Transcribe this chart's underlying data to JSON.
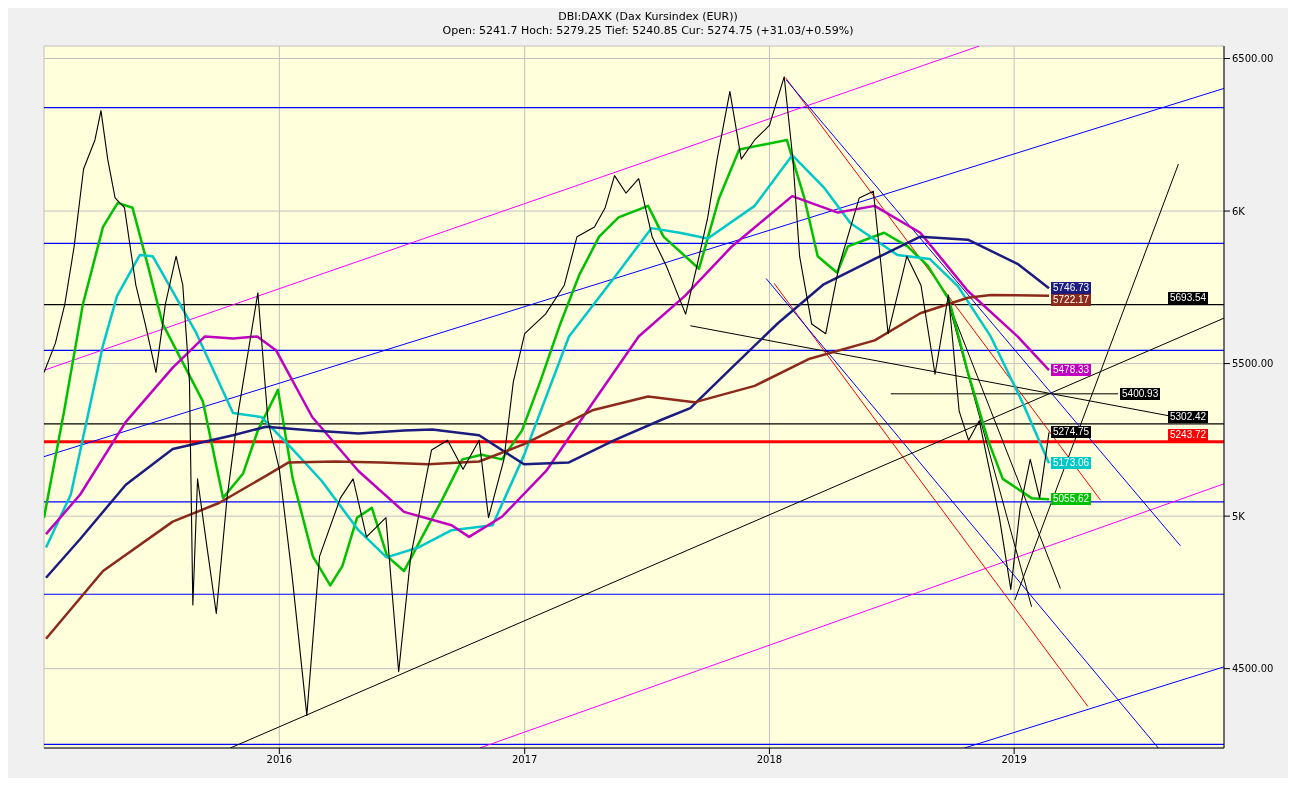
{
  "chart_data": {
    "type": "line",
    "title": "DBI:DAXK (Dax Kursindex (EUR))",
    "subtitle": "Open: 5241.7 Hoch: 5279.25 Tief: 5240.85 Cur: 5274.75 (+31.03/+0.59%)",
    "xlim": [
      "2015-01-15",
      "2019-11-10"
    ],
    "xticks": [
      {
        "value": "2016-01-01",
        "label": "2016"
      },
      {
        "value": "2017-01-01",
        "label": "2017"
      },
      {
        "value": "2018-01-01",
        "label": "2018"
      },
      {
        "value": "2019-01-01",
        "label": "2019"
      }
    ],
    "ylim": [
      4240,
      6541
    ],
    "yticks": [
      {
        "value": 4500,
        "label": "4500.00"
      },
      {
        "value": 5000,
        "label": "5K"
      },
      {
        "value": 5500,
        "label": "5500.00"
      },
      {
        "value": 6000,
        "label": "6K"
      },
      {
        "value": 6500,
        "label": "6500.00"
      }
    ],
    "grid": true,
    "ref_lines": [
      {
        "axis": "y",
        "value": 6339,
        "color": "#0000ff"
      },
      {
        "axis": "y",
        "value": 5894,
        "color": "#0000ff"
      },
      {
        "axis": "y",
        "value": 5543,
        "color": "#0000ff"
      },
      {
        "axis": "y",
        "value": 5047,
        "color": "#0000ff"
      },
      {
        "axis": "y",
        "value": 4744,
        "color": "#0000ff"
      },
      {
        "axis": "y",
        "value": 4252,
        "color": "#0000ff"
      },
      {
        "axis": "y",
        "value": 5693.54,
        "label": "5693.54",
        "color": "#000000"
      },
      {
        "axis": "y",
        "value": 5302.42,
        "label": "5302.42",
        "color": "#000000"
      },
      {
        "axis": "y",
        "value": 5243.72,
        "label": "5243.72",
        "color": "#ff0000"
      }
    ],
    "series": [
      {
        "type": "line",
        "color": "#ff00ff",
        "x": [
          "2015-01-15",
          "2018-11-10"
        ],
        "values": [
          5478,
          6541
        ]
      },
      {
        "type": "line",
        "color": "#ff00ff",
        "x": [
          "2016-10-26",
          "2019-11-10"
        ],
        "values": [
          4240,
          5106
        ]
      },
      {
        "type": "line",
        "color": "#0000ff",
        "x": [
          "2015-01-15",
          "2019-11-10"
        ],
        "values": [
          5195,
          6402
        ]
      },
      {
        "type": "line",
        "color": "#0000ff",
        "x": [
          "2018-10-19",
          "2019-11-10"
        ],
        "values": [
          4240,
          4506
        ]
      },
      {
        "type": "line",
        "color": "#000000",
        "x": [
          "2015-10-20",
          "2019-11-10"
        ],
        "values": [
          4240,
          5649
        ]
      },
      {
        "type": "line",
        "color": "#000000",
        "x": [
          "2017-09-05",
          "2019-10-07"
        ],
        "values": [
          5624,
          5309
        ]
      },
      {
        "type": "line",
        "color": "#000000",
        "x": [
          "2018-07-01",
          "2019-06-05"
        ],
        "values": [
          5400.93,
          5400.93
        ],
        "value_labels": [
          null,
          "5400.93"
        ]
      },
      {
        "type": "line",
        "color": "#ff0000",
        "x": [
          "2018-01-25",
          "2019-05-10"
        ],
        "values": [
          6437,
          5052
        ]
      },
      {
        "type": "line",
        "color": "#ff0000",
        "x": [
          "2018-01-08",
          "2019-04-21"
        ],
        "values": [
          5763,
          4376
        ]
      },
      {
        "type": "line",
        "color": "#0000ff",
        "x": [
          "2018-01-26",
          "2019-09-06"
        ],
        "values": [
          6430,
          4903
        ]
      },
      {
        "type": "line",
        "color": "#0000ff",
        "x": [
          "2017-12-27",
          "2019-08-04"
        ],
        "values": [
          5779,
          4240
        ]
      },
      {
        "type": "line",
        "color": "#000000",
        "x": [
          "2018-09-24",
          "2019-03-11"
        ],
        "values": [
          5706,
          4763
        ]
      },
      {
        "type": "line",
        "color": "#000000",
        "x": [
          "2018-09-24",
          "2019-01-27"
        ],
        "values": [
          5706,
          4703
        ]
      },
      {
        "type": "line",
        "color": "#000000",
        "x": [
          "2019-01-02",
          "2019-09-03"
        ],
        "values": [
          4725,
          6154
        ]
      },
      {
        "type": "line",
        "color": "#000000",
        "x": [
          "2015-01-15",
          "2015-02-01",
          "2015-02-15",
          "2015-03-01",
          "2015-03-15",
          "2015-04-01",
          "2015-04-10",
          "2015-04-20",
          "2015-05-01",
          "2015-05-15",
          "2015-06-01",
          "2015-06-15",
          "2015-07-01",
          "2015-07-15",
          "2015-07-31",
          "2015-08-10",
          "2015-08-20",
          "2015-08-25",
          "2015-09-01",
          "2015-09-15",
          "2015-09-29",
          "2015-10-15",
          "2015-11-01",
          "2015-11-30",
          "2015-12-15",
          "2016-01-01",
          "2016-01-20",
          "2016-02-11",
          "2016-03-01",
          "2016-04-01",
          "2016-04-20",
          "2016-05-10",
          "2016-06-08",
          "2016-06-27",
          "2016-07-15",
          "2016-08-15",
          "2016-09-08",
          "2016-10-01",
          "2016-10-25",
          "2016-11-08",
          "2016-12-01",
          "2016-12-15",
          "2017-01-01",
          "2017-02-01",
          "2017-03-01",
          "2017-03-20",
          "2017-04-15",
          "2017-05-01",
          "2017-05-15",
          "2017-06-01",
          "2017-06-20",
          "2017-07-10",
          "2017-07-31",
          "2017-08-29",
          "2017-09-15",
          "2017-10-01",
          "2017-10-15",
          "2017-11-03",
          "2017-11-20",
          "2017-12-10",
          "2018-01-01",
          "2018-01-23",
          "2018-02-05",
          "2018-02-15",
          "2018-03-05",
          "2018-03-26",
          "2018-04-15",
          "2018-05-15",
          "2018-06-05",
          "2018-06-27",
          "2018-07-25",
          "2018-08-15",
          "2018-09-05",
          "2018-09-25",
          "2018-10-11",
          "2018-10-25",
          "2018-11-10",
          "2018-11-25",
          "2018-12-10",
          "2018-12-27",
          "2019-01-10",
          "2019-01-25",
          "2019-02-08",
          "2019-02-22"
        ],
        "values": [
          5471,
          5567,
          5694,
          5884,
          6138,
          6233,
          6329,
          6170,
          6043,
          6011,
          5757,
          5630,
          5471,
          5694,
          5852,
          5757,
          5440,
          4709,
          5122,
          4900,
          4681,
          5059,
          5344,
          5732,
          5313,
          5154,
          4805,
          4347,
          4868,
          5059,
          5122,
          4932,
          4995,
          4490,
          4868,
          5217,
          5249,
          5154,
          5249,
          4995,
          5186,
          5440,
          5598,
          5662,
          5757,
          5916,
          5948,
          6011,
          6116,
          6059,
          6106,
          5916,
          5821,
          5662,
          5821,
          5979,
          6170,
          6392,
          6170,
          6233,
          6281,
          6440,
          6170,
          5852,
          5630,
          5598,
          5821,
          6043,
          6065,
          5598,
          5852,
          5757,
          5465,
          5725,
          5344,
          5249,
          5313,
          5154,
          4995,
          4760,
          5027,
          5186,
          5059,
          5274.75
        ],
        "value_labels": [
          null,
          null,
          null,
          null,
          null,
          null,
          null,
          null,
          null,
          null,
          null,
          null,
          null,
          null,
          null,
          null,
          null,
          null,
          null,
          null,
          null,
          null,
          null,
          null,
          null,
          null,
          null,
          null,
          null,
          null,
          null,
          null,
          null,
          null,
          null,
          null,
          null,
          null,
          null,
          null,
          null,
          null,
          null,
          null,
          null,
          null,
          null,
          null,
          null,
          null,
          null,
          null,
          null,
          null,
          null,
          null,
          null,
          null,
          null,
          null,
          null,
          null,
          null,
          null,
          null,
          null,
          null,
          null,
          null,
          null,
          null,
          null,
          null,
          null,
          null,
          null,
          null,
          null,
          null,
          null,
          null,
          null,
          null,
          "5274.75"
        ]
      },
      {
        "type": "line",
        "color": "#00c000",
        "x": [
          "2015-01-15",
          "2015-02-14",
          "2015-03-14",
          "2015-04-13",
          "2015-05-05",
          "2015-05-27",
          "2015-06-19",
          "2015-07-11",
          "2015-08-10",
          "2015-09-09",
          "2015-10-09",
          "2015-11-08",
          "2015-11-30",
          "2015-12-30",
          "2016-01-21",
          "2016-02-20",
          "2016-03-17",
          "2016-04-04",
          "2016-04-26",
          "2016-05-18",
          "2016-06-10",
          "2016-07-05",
          "2016-08-01",
          "2016-09-01",
          "2016-09-30",
          "2016-10-29",
          "2016-11-28",
          "2016-12-28",
          "2017-01-24",
          "2017-02-23",
          "2017-03-23",
          "2017-04-22",
          "2017-05-21",
          "2017-07-04",
          "2017-07-27",
          "2017-09-18",
          "2017-10-18",
          "2017-11-17",
          "2018-01-27",
          "2018-02-22",
          "2018-03-14",
          "2018-04-12",
          "2018-04-28",
          "2018-06-21",
          "2018-07-26",
          "2018-08-25",
          "2018-09-26",
          "2018-10-24",
          "2018-11-23",
          "2018-12-15",
          "2019-01-27",
          "2019-02-22"
        ],
        "values": [
          4995,
          5344,
          5694,
          5948,
          6027,
          6011,
          5821,
          5630,
          5503,
          5376,
          5060,
          5140,
          5281,
          5414,
          5122,
          4868,
          4773,
          4836,
          4995,
          5027,
          4868,
          4820,
          4932,
          5059,
          5186,
          5201,
          5186,
          5281,
          5440,
          5630,
          5789,
          5916,
          5979,
          6017,
          5916,
          5811,
          6043,
          6202,
          6233,
          6043,
          5852,
          5798,
          5884,
          5929,
          5884,
          5821,
          5709,
          5471,
          5249,
          5122,
          5059,
          5055.62
        ],
        "value_labels": [
          null,
          null,
          null,
          null,
          null,
          null,
          null,
          null,
          null,
          null,
          null,
          null,
          null,
          null,
          null,
          null,
          null,
          null,
          null,
          null,
          null,
          null,
          null,
          null,
          null,
          null,
          null,
          null,
          null,
          null,
          null,
          null,
          null,
          null,
          null,
          null,
          null,
          null,
          null,
          null,
          null,
          null,
          null,
          null,
          null,
          null,
          null,
          null,
          null,
          null,
          null,
          "5055.62"
        ]
      },
      {
        "type": "line",
        "color": "#00c8c8",
        "x": [
          "2015-01-18",
          "2015-02-24",
          "2015-04-13",
          "2015-05-04",
          "2015-06-07",
          "2015-06-26",
          "2015-08-29",
          "2015-10-24",
          "2015-12-05",
          "2016-01-23",
          "2016-03-04",
          "2016-04-28",
          "2016-06-09",
          "2016-07-26",
          "2016-09-14",
          "2016-11-14",
          "2016-12-31",
          "2017-03-08",
          "2017-05-15",
          "2017-07-09",
          "2017-08-20",
          "2017-10-01",
          "2017-12-10",
          "2018-02-04",
          "2018-03-23",
          "2018-05-02",
          "2018-07-11",
          "2018-08-28",
          "2018-10-09",
          "2018-11-27",
          "2019-01-14",
          "2019-02-22"
        ],
        "values": [
          4897,
          5071,
          5560,
          5722,
          5856,
          5852,
          5605,
          5338,
          5325,
          5214,
          5116,
          4954,
          4865,
          4897,
          4954,
          4970,
          5200,
          5589,
          5783,
          5944,
          5929,
          5910,
          6017,
          6183,
          6078,
          5960,
          5856,
          5843,
          5754,
          5589,
          5370,
          5173.06
        ],
        "value_labels": [
          null,
          null,
          null,
          null,
          null,
          null,
          null,
          null,
          null,
          null,
          null,
          null,
          null,
          null,
          null,
          null,
          null,
          null,
          null,
          null,
          null,
          null,
          null,
          null,
          null,
          null,
          null,
          null,
          null,
          null,
          null,
          "5173.06"
        ]
      },
      {
        "type": "line",
        "color": "#c000c0",
        "x": [
          "2015-01-18",
          "2015-03-10",
          "2015-05-17",
          "2015-07-26",
          "2015-09-12",
          "2015-10-24",
          "2015-11-29",
          "2015-12-27",
          "2016-02-19",
          "2016-04-28",
          "2016-07-05",
          "2016-09-14",
          "2016-10-10",
          "2016-11-28",
          "2017-02-02",
          "2017-04-12",
          "2017-06-20",
          "2017-08-28",
          "2017-11-06",
          "2018-02-04",
          "2018-04-13",
          "2018-06-07",
          "2018-08-14",
          "2018-10-24",
          "2019-01-06",
          "2019-02-22"
        ],
        "values": [
          4941,
          5071,
          5309,
          5487,
          5589,
          5582,
          5589,
          5544,
          5325,
          5148,
          5014,
          4970,
          4932,
          4998,
          5148,
          5370,
          5589,
          5722,
          5884,
          6049,
          5995,
          6017,
          5929,
          5738,
          5589,
          5478.33
        ],
        "value_labels": [
          null,
          null,
          null,
          null,
          null,
          null,
          null,
          null,
          null,
          null,
          null,
          null,
          null,
          null,
          null,
          null,
          null,
          null,
          null,
          null,
          null,
          null,
          null,
          null,
          null,
          "5478.33"
        ]
      },
      {
        "type": "line",
        "color": "#1c1c80",
        "x": [
          "2015-01-18",
          "2015-03-10",
          "2015-05-17",
          "2015-07-26",
          "2015-10-24",
          "2015-12-12",
          "2016-02-19",
          "2016-04-28",
          "2016-07-05",
          "2016-08-16",
          "2016-10-25",
          "2016-12-31",
          "2017-03-08",
          "2017-05-15",
          "2017-07-24",
          "2017-09-05",
          "2017-11-06",
          "2018-01-14",
          "2018-03-23",
          "2018-06-07",
          "2018-08-14",
          "2018-10-24",
          "2019-01-06",
          "2019-02-22"
        ],
        "values": [
          4798,
          4925,
          5103,
          5220,
          5265,
          5293,
          5281,
          5271,
          5281,
          5284,
          5265,
          5170,
          5176,
          5249,
          5316,
          5354,
          5487,
          5633,
          5760,
          5843,
          5916,
          5906,
          5827,
          5746.73
        ],
        "value_labels": [
          null,
          null,
          null,
          null,
          null,
          null,
          null,
          null,
          null,
          null,
          null,
          null,
          null,
          null,
          null,
          null,
          null,
          null,
          null,
          null,
          null,
          null,
          null,
          "5746.73"
        ]
      },
      {
        "type": "line",
        "color": "#8b2a1a",
        "x": [
          "2015-01-18",
          "2015-04-13",
          "2015-07-26",
          "2015-10-03",
          "2015-12-12",
          "2016-01-15",
          "2016-03-24",
          "2016-06-01",
          "2016-08-10",
          "2016-10-25",
          "2016-12-31",
          "2017-04-12",
          "2017-07-04",
          "2017-09-11",
          "2017-12-10",
          "2018-03-02",
          "2018-06-07",
          "2018-08-14",
          "2018-10-24",
          "2018-11-27",
          "2019-02-22"
        ],
        "values": [
          4598,
          4820,
          4982,
          5043,
          5132,
          5176,
          5179,
          5176,
          5170,
          5179,
          5236,
          5347,
          5392,
          5373,
          5427,
          5516,
          5576,
          5665,
          5716,
          5725,
          5722.17
        ],
        "value_labels": [
          null,
          null,
          null,
          null,
          null,
          null,
          null,
          null,
          null,
          null,
          null,
          null,
          null,
          null,
          null,
          null,
          null,
          null,
          null,
          null,
          "5722.17"
        ]
      }
    ]
  }
}
